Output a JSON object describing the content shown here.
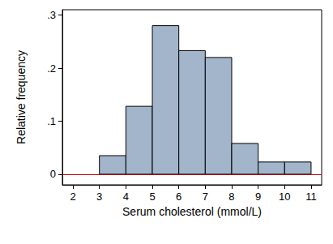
{
  "chart_data": {
    "type": "histogram",
    "x_label": "Serum cholesterol (mmol/L)",
    "y_label": "Relative frequency",
    "bins": [
      3,
      4,
      5,
      6,
      7,
      8,
      9,
      10,
      11
    ],
    "values": [
      0.035,
      0.128,
      0.28,
      0.233,
      0.22,
      0.058,
      0.023,
      0.023
    ],
    "color": "#a3b5cb",
    "xlim": [
      1.6,
      11.4
    ],
    "xticks": [
      2,
      3,
      4,
      5,
      6,
      7,
      8,
      9,
      10,
      11
    ],
    "ylim": [
      -0.02,
      0.31
    ],
    "yticks": [
      0,
      {
        "value": 0.1,
        "label": ".1"
      },
      {
        "value": 0.2,
        "label": ".2"
      },
      {
        "value": 0.3,
        "label": ".3"
      }
    ]
  }
}
